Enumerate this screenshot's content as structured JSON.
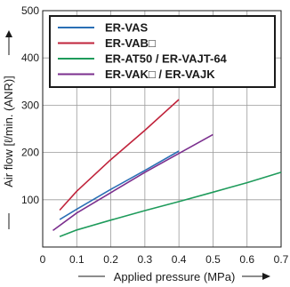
{
  "chart_data": {
    "type": "line",
    "xlabel": "Applied pressure (MPa)",
    "ylabel": "Air flow [ℓ/min. (ANR)]",
    "xlim": [
      0,
      0.7
    ],
    "ylim": [
      0,
      500
    ],
    "x_ticks": [
      "0",
      "0.1",
      "0.2",
      "0.3",
      "0.4",
      "0.5",
      "0.6",
      "0.7"
    ],
    "y_ticks": [
      "100",
      "200",
      "300",
      "400",
      "500"
    ],
    "grid": true,
    "legend_position": "top-left",
    "series": [
      {
        "name": "ER-VAS",
        "color": "#2a6fb5",
        "x": [
          0.05,
          0.1,
          0.2,
          0.3,
          0.4
        ],
        "y": [
          58,
          80,
          122,
          162,
          203
        ]
      },
      {
        "name": "ER-VAB□",
        "color": "#c0233b",
        "x": [
          0.05,
          0.1,
          0.2,
          0.3,
          0.4
        ],
        "y": [
          78,
          118,
          185,
          247,
          312
        ]
      },
      {
        "name": "ER-AT50 / ER-VAJT-64",
        "color": "#1e9b5b",
        "x": [
          0.05,
          0.1,
          0.2,
          0.3,
          0.4,
          0.5,
          0.6,
          0.7
        ],
        "y": [
          22,
          36,
          57,
          77,
          96,
          116,
          136,
          158
        ]
      },
      {
        "name": "ER-VAK□ / ER-VAJK",
        "color": "#7b2f8e",
        "x": [
          0.03,
          0.1,
          0.2,
          0.3,
          0.4,
          0.5
        ],
        "y": [
          35,
          72,
          115,
          158,
          198,
          238
        ]
      }
    ]
  }
}
